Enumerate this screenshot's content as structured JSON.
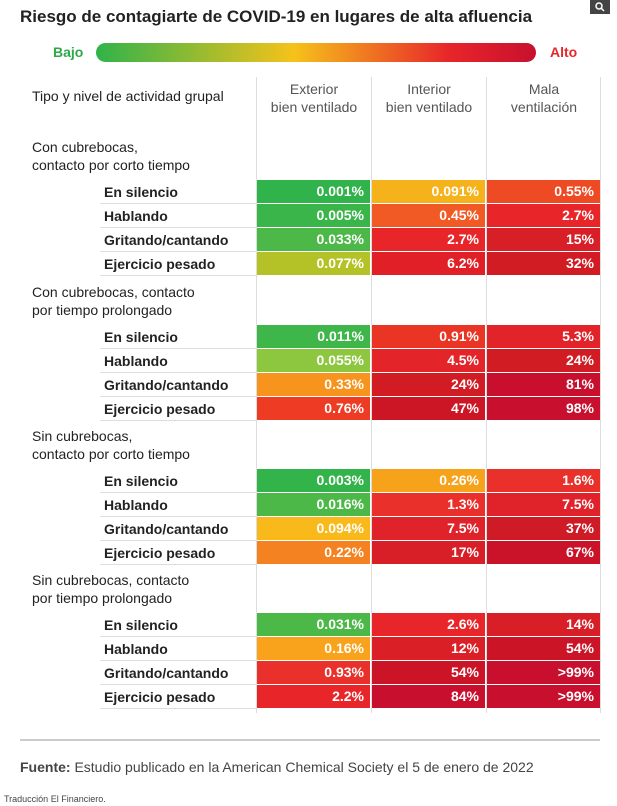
{
  "header": {
    "title": "Riesgo de contagiarte de COVID-19 en lugares de alta afluencia",
    "scale_low": "Bajo",
    "scale_high": "Alto"
  },
  "table": {
    "corner": "Tipo y nivel de actividad grupal",
    "columns": [
      [
        "Exterior",
        "bien ventilado"
      ],
      [
        "Interior",
        "bien ventilado"
      ],
      [
        "Mala",
        "ventilación"
      ]
    ],
    "groups": [
      {
        "title": [
          "Con cubrebocas,",
          "contacto por corto tiempo"
        ],
        "rows": [
          {
            "label": "En silencio",
            "cells": [
              "0.001%",
              "0.091%",
              "0.55%"
            ],
            "colors": [
              "#2fb34a",
              "#f6b21a",
              "#ee4a23"
            ]
          },
          {
            "label": "Hablando",
            "cells": [
              "0.005%",
              "0.45%",
              "2.7%"
            ],
            "colors": [
              "#3ab54a",
              "#f15a24",
              "#e8262a"
            ]
          },
          {
            "label": "Gritando/cantando",
            "cells": [
              "0.033%",
              "2.7%",
              "15%"
            ],
            "colors": [
              "#4cb848",
              "#e8262a",
              "#d81e27"
            ]
          },
          {
            "label": "Ejercicio pesado",
            "cells": [
              "0.077%",
              "6.2%",
              "32%"
            ],
            "colors": [
              "#b5c227",
              "#e11f27",
              "#d11c24"
            ]
          }
        ]
      },
      {
        "title": [
          "Con cubrebocas, contacto",
          "por tiempo prolongado"
        ],
        "rows": [
          {
            "label": "En silencio",
            "cells": [
              "0.011%",
              "0.91%",
              "5.3%"
            ],
            "colors": [
              "#3fb64a",
              "#ea3424",
              "#e2232a"
            ]
          },
          {
            "label": "Hablando",
            "cells": [
              "0.055%",
              "4.5%",
              "24%"
            ],
            "colors": [
              "#8dc63f",
              "#e3252a",
              "#d11c24"
            ]
          },
          {
            "label": "Gritando/cantando",
            "cells": [
              "0.33%",
              "24%",
              "81%"
            ],
            "colors": [
              "#f7941d",
              "#d11c24",
              "#c8102e"
            ]
          },
          {
            "label": "Ejercicio pesado",
            "cells": [
              "0.76%",
              "47%",
              "98%"
            ],
            "colors": [
              "#ee3b24",
              "#cc1626",
              "#c8102e"
            ]
          }
        ]
      },
      {
        "title": [
          "Sin cubrebocas,",
          "contacto por corto tiempo"
        ],
        "rows": [
          {
            "label": "En silencio",
            "cells": [
              "0.003%",
              "0.26%",
              "1.6%"
            ],
            "colors": [
              "#33b44a",
              "#f7a21b",
              "#e9302a"
            ]
          },
          {
            "label": "Hablando",
            "cells": [
              "0.016%",
              "1.3%",
              "7.5%"
            ],
            "colors": [
              "#4cb848",
              "#e9302a",
              "#e0222a"
            ]
          },
          {
            "label": "Gritando/cantando",
            "cells": [
              "0.094%",
              "7.5%",
              "37%"
            ],
            "colors": [
              "#f9b91b",
              "#e0222a",
              "#cf1b25"
            ]
          },
          {
            "label": "Ejercicio pesado",
            "cells": [
              "0.22%",
              "17%",
              "67%"
            ],
            "colors": [
              "#f58220",
              "#d81e27",
              "#ca1328"
            ]
          }
        ]
      },
      {
        "title": [
          "Sin cubrebocas, contacto",
          "por tiempo prolongado"
        ],
        "rows": [
          {
            "label": "En silencio",
            "cells": [
              "0.031%",
              "2.6%",
              "14%"
            ],
            "colors": [
              "#4cb848",
              "#e8262a",
              "#d81e27"
            ]
          },
          {
            "label": "Hablando",
            "cells": [
              "0.16%",
              "12%",
              "54%"
            ],
            "colors": [
              "#f8a31b",
              "#da1f27",
              "#cb1527"
            ]
          },
          {
            "label": "Gritando/cantando",
            "cells": [
              "0.93%",
              "54%",
              ">99%"
            ],
            "colors": [
              "#e9302a",
              "#cb1527",
              "#c8102e"
            ]
          },
          {
            "label": "Ejercicio pesado",
            "cells": [
              "2.2%",
              "84%",
              ">99%"
            ],
            "colors": [
              "#e8262a",
              "#c8102e",
              "#c8102e"
            ]
          }
        ]
      }
    ]
  },
  "footer": {
    "source_label": "Fuente:",
    "source": "Estudio publicado en la American Chemical Society el 5 de enero de 2022",
    "credit": "Traducción El Financiero."
  }
}
